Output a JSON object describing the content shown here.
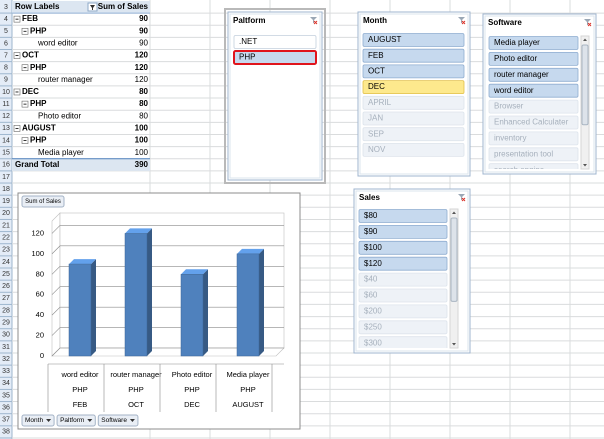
{
  "row_numbers": [
    3,
    4,
    5,
    6,
    7,
    8,
    9,
    10,
    11,
    12,
    13,
    14,
    15,
    16,
    17,
    18,
    19,
    20,
    21,
    22,
    23,
    24,
    25,
    26,
    27,
    28,
    29,
    30,
    31,
    32,
    33,
    34,
    35,
    36,
    37,
    38
  ],
  "pivot_table": {
    "headers": [
      "Row Labels",
      "Sum of Sales"
    ],
    "months": [
      {
        "name": "FEB",
        "value": 90,
        "platforms": [
          {
            "name": "PHP",
            "value": 90,
            "items": [
              {
                "name": "word editor",
                "value": 90
              }
            ]
          }
        ]
      },
      {
        "name": "OCT",
        "value": 120,
        "platforms": [
          {
            "name": "PHP",
            "value": 120,
            "items": [
              {
                "name": "router manager",
                "value": 120
              }
            ]
          }
        ]
      },
      {
        "name": "DEC",
        "value": 80,
        "platforms": [
          {
            "name": "PHP",
            "value": 80,
            "items": [
              {
                "name": "Photo editor",
                "value": 80
              }
            ]
          }
        ]
      },
      {
        "name": "AUGUST",
        "value": 100,
        "platforms": [
          {
            "name": "PHP",
            "value": 100,
            "items": [
              {
                "name": "Media player",
                "value": 100
              }
            ]
          }
        ]
      }
    ],
    "total": {
      "label": "Grand Total",
      "value": 390
    }
  },
  "slicers": [
    {
      "title": "Paltform",
      "items": [
        {
          "label": ".NET",
          "state": "unselected"
        },
        {
          "label": "PHP",
          "state": "selected",
          "outlined": true
        }
      ]
    },
    {
      "title": "Month",
      "items": [
        {
          "label": "AUGUST",
          "state": "selected"
        },
        {
          "label": "FEB",
          "state": "selected"
        },
        {
          "label": "OCT",
          "state": "selected"
        },
        {
          "label": "DEC",
          "state": "hovered"
        },
        {
          "label": "APRIL",
          "state": "no-data"
        },
        {
          "label": "JAN",
          "state": "no-data"
        },
        {
          "label": "SEP",
          "state": "no-data"
        },
        {
          "label": "NOV",
          "state": "no-data"
        }
      ]
    },
    {
      "title": "Software",
      "items": [
        {
          "label": "Media player",
          "state": "selected"
        },
        {
          "label": "Photo editor",
          "state": "selected"
        },
        {
          "label": "router manager",
          "state": "selected"
        },
        {
          "label": "word editor",
          "state": "selected"
        },
        {
          "label": "Browser",
          "state": "no-data"
        },
        {
          "label": "Enhanced Calculater",
          "state": "no-data"
        },
        {
          "label": "inventory",
          "state": "no-data"
        },
        {
          "label": "presentation tool",
          "state": "no-data"
        },
        {
          "label": "search engine",
          "state": "no-data"
        }
      ]
    },
    {
      "title": "Sales",
      "items": [
        {
          "label": "$80",
          "state": "selected"
        },
        {
          "label": "$90",
          "state": "selected"
        },
        {
          "label": "$100",
          "state": "selected"
        },
        {
          "label": "$120",
          "state": "selected"
        },
        {
          "label": "$40",
          "state": "no-data"
        },
        {
          "label": "$60",
          "state": "no-data"
        },
        {
          "label": "$200",
          "state": "no-data"
        },
        {
          "label": "$250",
          "state": "no-data"
        },
        {
          "label": "$300",
          "state": "no-data"
        }
      ]
    }
  ],
  "chart_data": {
    "type": "bar",
    "value_field_button": "Sum of Sales",
    "categories": [
      "word editor",
      "router manager",
      "Photo editor",
      "Media player"
    ],
    "category_levels": [
      [
        "PHP",
        "PHP",
        "PHP",
        "PHP"
      ],
      [
        "FEB",
        "OCT",
        "DEC",
        "AUGUST"
      ]
    ],
    "values": [
      90,
      120,
      80,
      100
    ],
    "color": "#4f81bd",
    "ylim": [
      0,
      140
    ],
    "yticks": [
      0,
      20,
      40,
      60,
      80,
      100,
      120
    ],
    "grid": true,
    "field_buttons": [
      "Month",
      "Paltform",
      "Software"
    ]
  }
}
